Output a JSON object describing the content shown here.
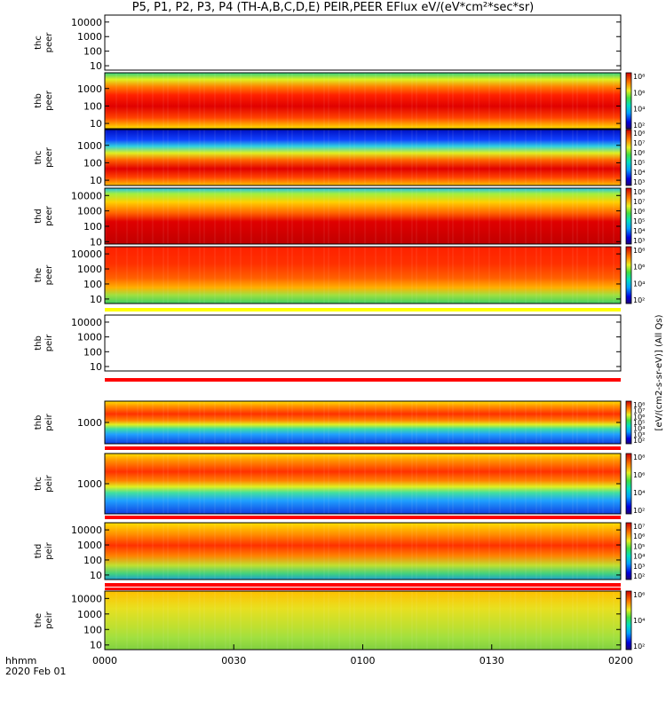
{
  "title": "P5, P1, P2, P3, P4 (TH-A,B,C,D,E) PEIR,PEER EFlux eV/(eV*cm²*sec*sr)",
  "time_axis": {
    "label_line1": "hhmm",
    "label_line2": "2020 Feb 01",
    "ticks": [
      "0000",
      "0030",
      "0100",
      "0130",
      "0200"
    ],
    "range_minutes": [
      0,
      120
    ]
  },
  "colorbar_units": "[eV/(cm2-s-sr-eV)] (All Qs)",
  "chart_data": [
    {
      "type": "heatmap",
      "panel": "thc peer",
      "line1": "thc",
      "line2": "peer",
      "yscale": "log",
      "ylim": [
        5,
        30000
      ],
      "yticks": [
        "10000",
        "1000",
        "100",
        "10"
      ],
      "empty": true
    },
    {
      "type": "heatmap",
      "panel": "thb peer",
      "line1": "thb",
      "line2": "peer",
      "yscale": "log",
      "ylim": [
        5,
        8000
      ],
      "yticks": [
        "1000",
        "100",
        "10"
      ],
      "colorbar_ticks": [
        "10⁸",
        "10⁶",
        "10⁴",
        "10²"
      ]
    },
    {
      "type": "heatmap",
      "panel": "thc peer",
      "line1": "thc",
      "line2": "peer",
      "yscale": "log",
      "ylim": [
        5,
        8000
      ],
      "yticks": [
        "1000",
        "100",
        "10"
      ],
      "colorbar_ticks": [
        "10⁸",
        "10⁷",
        "10⁶",
        "10⁵",
        "10⁴",
        "10³"
      ]
    },
    {
      "type": "heatmap",
      "panel": "thd peer",
      "line1": "thd",
      "line2": "peer",
      "yscale": "log",
      "ylim": [
        7,
        30000
      ],
      "yticks": [
        "10000",
        "1000",
        "100",
        "10"
      ],
      "colorbar_ticks": [
        "10⁸",
        "10⁷",
        "10⁶",
        "10⁵",
        "10⁴",
        "10³"
      ]
    },
    {
      "type": "heatmap",
      "panel": "the peer",
      "line1": "the",
      "line2": "peer",
      "yscale": "log",
      "ylim": [
        5,
        30000
      ],
      "yticks": [
        "10000",
        "1000",
        "100",
        "10"
      ],
      "colorbar_ticks": [
        "10⁸",
        "10⁶",
        "10⁴",
        "10²"
      ]
    },
    {
      "type": "heatmap",
      "panel": "thb peir",
      "line1": "thb",
      "line2": "peir",
      "yscale": "log",
      "ylim": [
        5,
        30000
      ],
      "yticks": [
        "10000",
        "1000",
        "100",
        "10"
      ],
      "empty": true
    },
    {
      "type": "heatmap",
      "panel": "thb peir",
      "line1": "thb",
      "line2": "peir",
      "yscale": "log",
      "ylim": [
        50,
        20000
      ],
      "yticks": [
        "1000"
      ],
      "colorbar_ticks": [
        "10⁸",
        "10⁷",
        "10⁶",
        "10⁵",
        "10⁴",
        "10³",
        "10²"
      ]
    },
    {
      "type": "heatmap",
      "panel": "thc peir",
      "line1": "thc",
      "line2": "peir",
      "yscale": "log",
      "ylim": [
        50,
        20000
      ],
      "yticks": [
        "1000"
      ],
      "colorbar_ticks": [
        "10⁸",
        "10⁶",
        "10⁴",
        "10²"
      ]
    },
    {
      "type": "heatmap",
      "panel": "thd peir",
      "line1": "thd",
      "line2": "peir",
      "yscale": "log",
      "ylim": [
        5,
        30000
      ],
      "yticks": [
        "10000",
        "1000",
        "100",
        "10"
      ],
      "colorbar_ticks": [
        "10⁷",
        "10⁶",
        "10⁵",
        "10⁴",
        "10³",
        "10²"
      ]
    },
    {
      "type": "heatmap",
      "panel": "the peir",
      "line1": "the",
      "line2": "peir",
      "yscale": "log",
      "ylim": [
        5,
        30000
      ],
      "yticks": [
        "10000",
        "1000",
        "100",
        "10"
      ],
      "colorbar_ticks": [
        "10⁶",
        "10⁴",
        "10²"
      ]
    }
  ]
}
